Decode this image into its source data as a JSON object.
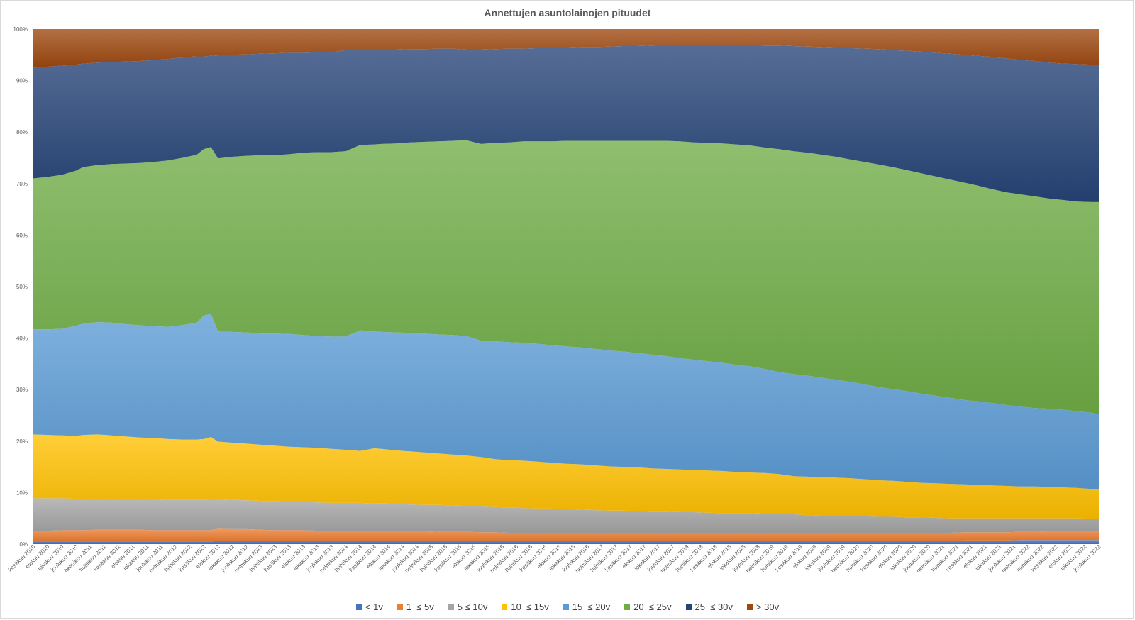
{
  "chart_data": {
    "type": "area",
    "stacked": "percent",
    "title": "Annettujen asuntolainojen pituudet",
    "ylim": [
      0,
      100
    ],
    "yticks": [
      "0%",
      "10%",
      "20%",
      "30%",
      "40%",
      "50%",
      "60%",
      "70%",
      "80%",
      "90%",
      "100%"
    ],
    "x_tick_labels": [
      "kesäkuu 2010",
      "elokuu 2010",
      "lokakuu 2010",
      "joulukuu 2010",
      "helmikuu 2011",
      "huhtikuu 2011",
      "kesäkuu 2011",
      "elokuu 2011",
      "lokakuu 2011",
      "joulukuu 2011",
      "helmikuu 2012",
      "huhtikuu 2012",
      "kesäkuu 2012",
      "elokuu 2012",
      "lokakuu 2012",
      "joulukuu 2012",
      "helmikuu 2013",
      "huhtikuu 2013",
      "kesäkuu 2013",
      "elokuu 2013",
      "lokakuu 2013",
      "joulukuu 2013",
      "helmikuu 2014",
      "huhtikuu 2014",
      "kesäkuu 2014",
      "elokuu 2014",
      "lokakuu 2014",
      "joulukuu 2014",
      "helmikuu 2015",
      "huhtikuu 2015",
      "kesäkuu 2015",
      "elokuu 2015",
      "lokakuu 2015",
      "joulukuu 2015",
      "helmikuu 2016",
      "huhtikuu 2016",
      "kesäkuu 2016",
      "elokuu 2016",
      "lokakuu 2016",
      "joulukuu 2016",
      "helmikuu 2017",
      "huhtikuu 2017",
      "kesäkuu 2017",
      "elokuu 2017",
      "lokakuu 2017",
      "joulukuu 2017",
      "helmikuu 2018",
      "huhtikuu 2018",
      "kesäkuu 2018",
      "elokuu 2018",
      "lokakuu 2018",
      "joulukuu 2018",
      "helmikuu 2019",
      "huhtikuu 2019",
      "kesäkuu 2019",
      "elokuu 2019",
      "lokakuu 2019",
      "joulukuu 2019",
      "helmikuu 2020",
      "huhtikuu 2020",
      "kesäkuu 2020",
      "elokuu 2020",
      "lokakuu 2020",
      "joulukuu 2020",
      "helmikuu 2021",
      "huhtikuu 2021",
      "kesäkuu 2021",
      "elokuu 2021",
      "lokakuu 2021",
      "joulukuu 2021",
      "helmikuu 2022",
      "huhtikuu 2022",
      "kesäkuu 2022",
      "elokuu 2022",
      "lokakuu 2022",
      "joulukuu 2022"
    ],
    "x_months": [
      "2010-06",
      "2010-08",
      "2010-10",
      "2010-12",
      "2011-01",
      "2011-03",
      "2011-05",
      "2011-07",
      "2011-09",
      "2011-11",
      "2012-01",
      "2012-03",
      "2012-05",
      "2012-06",
      "2012-07",
      "2012-08",
      "2012-10",
      "2012-12",
      "2013-02",
      "2013-04",
      "2013-06",
      "2013-08",
      "2013-10",
      "2013-12",
      "2014-02",
      "2014-04",
      "2014-06",
      "2014-07",
      "2014-09",
      "2014-11",
      "2015-01",
      "2015-03",
      "2015-05",
      "2015-07",
      "2015-09",
      "2015-11",
      "2016-01",
      "2016-03",
      "2016-05",
      "2016-07",
      "2016-09",
      "2016-11",
      "2017-01",
      "2017-03",
      "2017-05",
      "2017-07",
      "2017-09",
      "2017-11",
      "2018-01",
      "2018-03",
      "2018-05",
      "2018-07",
      "2018-09",
      "2018-11",
      "2019-01",
      "2019-03",
      "2019-05",
      "2019-07",
      "2019-09",
      "2019-11",
      "2020-01",
      "2020-03",
      "2020-05",
      "2020-07",
      "2020-09",
      "2020-11",
      "2021-01",
      "2021-03",
      "2021-05",
      "2021-07",
      "2021-09",
      "2021-11",
      "2022-01",
      "2022-03",
      "2022-05",
      "2022-07",
      "2022-09",
      "2022-11",
      "2022-12"
    ],
    "series": [
      {
        "name": "< 1v",
        "color": "#4472c4",
        "cumulative_top": [
          0.5,
          0.5,
          0.5,
          0.5,
          0.5,
          0.5,
          0.5,
          0.5,
          0.5,
          0.5,
          0.5,
          0.5,
          0.5,
          0.5,
          0.5,
          0.6,
          0.6,
          0.6,
          0.6,
          0.6,
          0.6,
          0.6,
          0.6,
          0.6,
          0.6,
          0.6,
          0.6,
          0.6,
          0.6,
          0.6,
          0.6,
          0.6,
          0.6,
          0.6,
          0.6,
          0.6,
          0.6,
          0.6,
          0.6,
          0.6,
          0.6,
          0.6,
          0.6,
          0.6,
          0.6,
          0.6,
          0.6,
          0.6,
          0.6,
          0.6,
          0.6,
          0.6,
          0.6,
          0.6,
          0.6,
          0.6,
          0.6,
          0.6,
          0.6,
          0.6,
          0.6,
          0.6,
          0.6,
          0.6,
          0.6,
          0.6,
          0.6,
          0.6,
          0.7,
          0.7,
          0.7,
          0.7,
          0.8,
          0.8,
          0.8,
          0.8,
          0.8,
          0.8,
          0.8
        ]
      },
      {
        "name": "1  ≤ 5v",
        "color": "#ed7d31",
        "cumulative_top": [
          2.6,
          2.6,
          2.7,
          2.7,
          2.7,
          2.8,
          2.8,
          2.8,
          2.8,
          2.7,
          2.7,
          2.7,
          2.7,
          2.7,
          2.7,
          3.0,
          2.9,
          2.9,
          2.8,
          2.7,
          2.7,
          2.7,
          2.6,
          2.6,
          2.6,
          2.6,
          2.6,
          2.6,
          2.5,
          2.5,
          2.5,
          2.4,
          2.4,
          2.4,
          2.3,
          2.3,
          2.2,
          2.2,
          2.2,
          2.2,
          2.2,
          2.2,
          2.2,
          2.2,
          2.2,
          2.2,
          2.2,
          2.2,
          2.2,
          2.2,
          2.2,
          2.2,
          2.2,
          2.2,
          2.2,
          2.2,
          2.2,
          2.2,
          2.2,
          2.2,
          2.2,
          2.2,
          2.2,
          2.2,
          2.2,
          2.2,
          2.2,
          2.2,
          2.3,
          2.3,
          2.3,
          2.3,
          2.4,
          2.4,
          2.5,
          2.5,
          2.6,
          2.6,
          2.6
        ]
      },
      {
        "name": "5 ≤ 10v",
        "color": "#a5a5a5",
        "cumulative_top": [
          8.9,
          8.9,
          8.9,
          8.8,
          8.8,
          8.8,
          8.8,
          8.8,
          8.7,
          8.7,
          8.6,
          8.6,
          8.6,
          8.6,
          8.7,
          8.7,
          8.6,
          8.5,
          8.4,
          8.3,
          8.2,
          8.2,
          8.1,
          8.0,
          8.0,
          8.0,
          7.9,
          7.9,
          7.8,
          7.7,
          7.6,
          7.6,
          7.5,
          7.4,
          7.3,
          7.2,
          7.1,
          7.0,
          6.9,
          6.9,
          6.8,
          6.7,
          6.6,
          6.5,
          6.5,
          6.4,
          6.3,
          6.3,
          6.2,
          6.2,
          6.1,
          6.0,
          6.0,
          6.0,
          5.9,
          5.9,
          5.8,
          5.6,
          5.5,
          5.5,
          5.4,
          5.4,
          5.3,
          5.3,
          5.2,
          5.2,
          5.1,
          5.0,
          5.0,
          5.0,
          5.0,
          5.0,
          5.0,
          5.0,
          5.0,
          5.0,
          5.0,
          4.9,
          4.9
        ]
      },
      {
        "name": "10  ≤ 15v",
        "color": "#ffc000",
        "cumulative_top": [
          21.3,
          21.2,
          21.1,
          21.0,
          21.2,
          21.3,
          21.1,
          20.9,
          20.7,
          20.6,
          20.4,
          20.3,
          20.3,
          20.4,
          20.8,
          19.9,
          19.7,
          19.5,
          19.3,
          19.1,
          18.9,
          18.8,
          18.7,
          18.5,
          18.3,
          18.1,
          18.6,
          18.5,
          18.2,
          18.0,
          17.8,
          17.6,
          17.4,
          17.2,
          16.9,
          16.5,
          16.3,
          16.2,
          16.0,
          15.8,
          15.6,
          15.5,
          15.3,
          15.1,
          15.0,
          14.9,
          14.7,
          14.6,
          14.5,
          14.4,
          14.3,
          14.2,
          14.0,
          13.9,
          13.8,
          13.6,
          13.2,
          13.1,
          13.0,
          12.9,
          12.8,
          12.6,
          12.4,
          12.3,
          12.1,
          11.9,
          11.8,
          11.7,
          11.6,
          11.5,
          11.4,
          11.3,
          11.2,
          11.2,
          11.1,
          11.0,
          10.9,
          10.7,
          10.6
        ]
      },
      {
        "name": "15  ≤ 20v",
        "color": "#5b9bd5",
        "cumulative_top": [
          41.7,
          41.7,
          41.8,
          42.4,
          42.8,
          43.1,
          43.0,
          42.7,
          42.5,
          42.3,
          42.2,
          42.5,
          43.0,
          44.4,
          44.7,
          41.3,
          41.2,
          41.1,
          40.9,
          40.9,
          40.8,
          40.6,
          40.4,
          40.3,
          40.3,
          41.5,
          41.3,
          41.2,
          41.1,
          41.0,
          40.9,
          40.7,
          40.6,
          40.4,
          39.5,
          39.4,
          39.2,
          39.1,
          38.9,
          38.6,
          38.4,
          38.2,
          37.9,
          37.6,
          37.4,
          37.1,
          36.8,
          36.5,
          36.1,
          35.8,
          35.5,
          35.2,
          34.8,
          34.5,
          34.0,
          33.4,
          33.0,
          32.7,
          32.3,
          31.9,
          31.5,
          31.0,
          30.5,
          30.1,
          29.7,
          29.2,
          28.8,
          28.4,
          28.0,
          27.7,
          27.4,
          27.0,
          26.7,
          26.4,
          26.3,
          26.1,
          25.8,
          25.5,
          25.2
        ]
      },
      {
        "name": "20  ≤ 25v",
        "color": "#70ad47",
        "cumulative_top": [
          71.0,
          71.3,
          71.7,
          72.5,
          73.2,
          73.6,
          73.8,
          73.9,
          74.0,
          74.2,
          74.5,
          75.0,
          75.6,
          76.7,
          77.1,
          74.9,
          75.2,
          75.4,
          75.5,
          75.5,
          75.7,
          76.0,
          76.1,
          76.1,
          76.3,
          77.5,
          77.6,
          77.7,
          77.8,
          78.0,
          78.1,
          78.2,
          78.3,
          78.4,
          77.7,
          77.9,
          78.0,
          78.2,
          78.2,
          78.2,
          78.3,
          78.3,
          78.3,
          78.3,
          78.3,
          78.3,
          78.3,
          78.3,
          78.2,
          78.0,
          77.9,
          77.8,
          77.6,
          77.4,
          77.0,
          76.7,
          76.3,
          76.0,
          75.6,
          75.2,
          74.7,
          74.2,
          73.7,
          73.2,
          72.6,
          72.0,
          71.4,
          70.8,
          70.2,
          69.6,
          68.9,
          68.3,
          67.9,
          67.5,
          67.1,
          66.8,
          66.5,
          66.4,
          66.4
        ]
      },
      {
        "name": "25  ≤ 30v",
        "color": "#264478",
        "cumulative_top": [
          92.5,
          92.7,
          92.9,
          93.1,
          93.3,
          93.5,
          93.6,
          93.7,
          93.8,
          94.0,
          94.2,
          94.5,
          94.7,
          94.7,
          94.8,
          94.9,
          95.0,
          95.1,
          95.2,
          95.3,
          95.4,
          95.4,
          95.5,
          95.5,
          95.9,
          95.9,
          95.9,
          96.0,
          96.0,
          96.1,
          96.1,
          96.2,
          96.2,
          96.0,
          96.0,
          96.1,
          96.2,
          96.2,
          96.3,
          96.3,
          96.4,
          96.5,
          96.5,
          96.6,
          96.7,
          96.7,
          96.8,
          96.9,
          96.9,
          96.9,
          96.9,
          96.9,
          96.9,
          96.9,
          96.8,
          96.8,
          96.7,
          96.6,
          96.5,
          96.4,
          96.3,
          96.2,
          96.1,
          95.9,
          95.8,
          95.6,
          95.4,
          95.2,
          95.0,
          94.8,
          94.6,
          94.3,
          94.0,
          93.8,
          93.5,
          93.3,
          93.2,
          93.1,
          93.1
        ]
      },
      {
        "name": "> 30v",
        "color": "#9e480e",
        "cumulative_top": [
          100,
          100,
          100,
          100,
          100,
          100,
          100,
          100,
          100,
          100,
          100,
          100,
          100,
          100,
          100,
          100,
          100,
          100,
          100,
          100,
          100,
          100,
          100,
          100,
          100,
          100,
          100,
          100,
          100,
          100,
          100,
          100,
          100,
          100,
          100,
          100,
          100,
          100,
          100,
          100,
          100,
          100,
          100,
          100,
          100,
          100,
          100,
          100,
          100,
          100,
          100,
          100,
          100,
          100,
          100,
          100,
          100,
          100,
          100,
          100,
          100,
          100,
          100,
          100,
          100,
          100,
          100,
          100,
          100,
          100,
          100,
          100,
          100,
          100,
          100,
          100,
          100,
          100,
          100
        ]
      }
    ]
  }
}
